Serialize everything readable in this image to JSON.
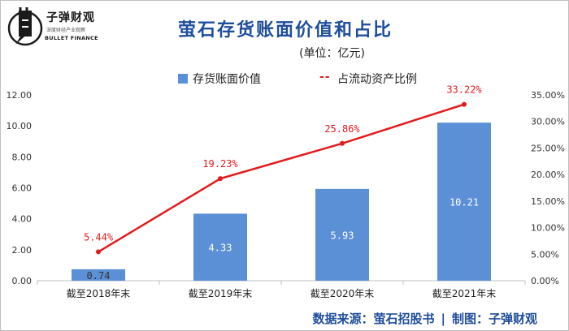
{
  "brand": {
    "name": "子弹财观",
    "slogan": "深度财经产业观察",
    "english": "BULLET FINANCE"
  },
  "header": {
    "title": "萤石存货账面价值和占比",
    "unit": "(单位：亿元)"
  },
  "footer": {
    "source": "数据来源：萤石招股书",
    "separator": "|",
    "credit": "制图：子弹财观"
  },
  "colors": {
    "bar": "#5b8fd6",
    "line": "#e31a1c",
    "title": "#1f4e9c"
  },
  "chart_data": {
    "type": "bar",
    "title": "萤石存货账面价值和占比",
    "categories": [
      "截至2018年末",
      "截至2019年末",
      "截至2020年末",
      "截至2021年末"
    ],
    "series": [
      {
        "name": "存货账面价值",
        "type": "bar",
        "axis": "left",
        "values": [
          0.74,
          4.33,
          5.93,
          10.21
        ],
        "labels": [
          "0.74",
          "4.33",
          "5.93",
          "10.21"
        ]
      },
      {
        "name": "占流动资产比例",
        "type": "line",
        "axis": "right",
        "values": [
          5.44,
          19.23,
          25.86,
          33.22
        ],
        "labels": [
          "5.44%",
          "19.23%",
          "25.86%",
          "33.22%"
        ]
      }
    ],
    "ylim": [
      0,
      12
    ],
    "y2lim": [
      0,
      35
    ],
    "yticks": [
      "0.00",
      "2.00",
      "4.00",
      "6.00",
      "8.00",
      "10.00",
      "12.00"
    ],
    "y2ticks": [
      "0.00%",
      "5.00%",
      "10.00%",
      "15.00%",
      "20.00%",
      "25.00%",
      "30.00%",
      "35.00%"
    ],
    "legend_position": "top",
    "grid": false
  }
}
